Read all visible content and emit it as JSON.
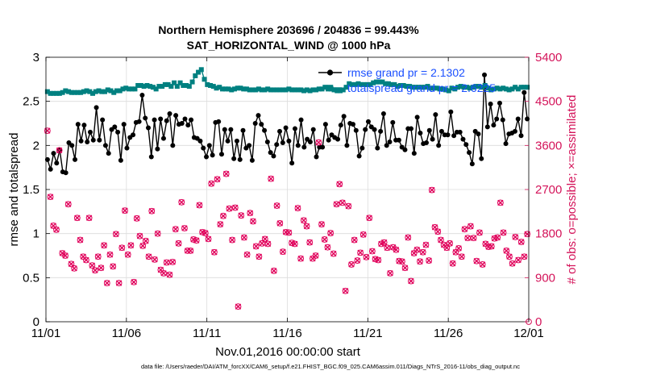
{
  "chart_data": {
    "type": "line",
    "title": "Northern Hemisphere 203696 / 204836 = 99.443%",
    "subtitle": "SAT_HORIZONTAL_WIND @ 1000 hPa",
    "xlabel": "Nov.01,2016 00:00:00 start",
    "ylabel_left": "rmse and totalspread",
    "ylabel_right": "# of obs: o=possible; ×=assimilated",
    "xlim": [
      0,
      30
    ],
    "ylim_left": [
      0,
      3
    ],
    "ylim_right": [
      0,
      5400
    ],
    "x_ticks": [
      {
        "value": 0,
        "label": "11/01"
      },
      {
        "value": 5,
        "label": "11/06"
      },
      {
        "value": 10,
        "label": "11/11"
      },
      {
        "value": 15,
        "label": "11/16"
      },
      {
        "value": 20,
        "label": "11/21"
      },
      {
        "value": 25,
        "label": "11/26"
      },
      {
        "value": 30,
        "label": "12/01"
      }
    ],
    "y_ticks_left": [
      {
        "value": 0,
        "label": "0"
      },
      {
        "value": 0.5,
        "label": "0.5"
      },
      {
        "value": 1,
        "label": "1"
      },
      {
        "value": 1.5,
        "label": "1.5"
      },
      {
        "value": 2,
        "label": "2"
      },
      {
        "value": 2.5,
        "label": "2.5"
      },
      {
        "value": 3,
        "label": "3"
      }
    ],
    "y_ticks_right": [
      {
        "value": 0,
        "label": "0"
      },
      {
        "value": 900,
        "label": "900"
      },
      {
        "value": 1800,
        "label": "1800"
      },
      {
        "value": 2700,
        "label": "2700"
      },
      {
        "value": 3600,
        "label": "3600"
      },
      {
        "value": 4500,
        "label": "4500"
      },
      {
        "value": 5400,
        "label": "5400"
      }
    ],
    "grid": true,
    "legend_position": "top-right",
    "series": [
      {
        "name": "rmse grand pr = 2.1302",
        "axis": "left",
        "color": "#000000",
        "values": [
          1.84,
          1.73,
          1.91,
          1.8,
          1.95,
          1.7,
          1.69,
          2.03,
          2.0,
          1.84,
          2.24,
          2.05,
          2.23,
          2.04,
          2.15,
          2.06,
          2.43,
          2.06,
          2.29,
          2.0,
          1.91,
          2.18,
          2.21,
          2.15,
          1.83,
          2.24,
          1.97,
          2.09,
          2.12,
          2.26,
          2.27,
          2.57,
          2.31,
          2.2,
          1.87,
          2.29,
          1.96,
          2.3,
          2.08,
          2.28,
          2.36,
          2.0,
          2.34,
          2.24,
          2.25,
          2.3,
          2.23,
          2.29,
          2.09,
          2.08,
          2.05,
          1.97,
          1.87,
          2.0,
          1.89,
          2.26,
          2.27,
          1.9,
          2.18,
          2.05,
          2.18,
          1.85,
          2.05,
          1.84,
          2.17,
          1.97,
          2.0,
          1.83,
          2.25,
          2.34,
          2.24,
          2.17,
          2.04,
          1.92,
          1.88,
          2.01,
          2.16,
          2.03,
          2.2,
          2.05,
          1.8,
          2.19,
          2.0,
          2.29,
          1.98,
          2.07,
          2.04,
          2.18,
          1.87,
          1.98,
          1.98,
          2.24,
          2.06,
          2.12,
          2.09,
          2.07,
          2.23,
          2.33,
          2.0,
          2.25,
          2.24,
          2.17,
          1.88,
          1.97,
          2.18,
          2.27,
          2.21,
          2.18,
          1.97,
          2.16,
          2.36,
          2.0,
          2.04,
          2.26,
          2.06,
          2.06,
          1.98,
          1.95,
          2.19,
          2.19,
          1.91,
          2.32,
          2.14,
          2.02,
          2.03,
          2.17,
          2.07,
          2.35,
          2.0,
          2.16,
          2.12,
          2.12,
          2.38,
          2.11,
          2.15,
          2.15,
          2.07,
          2.01,
          1.92,
          1.79,
          2.16,
          2.13,
          1.85,
          2.8,
          2.21,
          2.47,
          2.23,
          2.3,
          2.48,
          2.29,
          2.02,
          2.13,
          2.14,
          2.16,
          2.3,
          2.11,
          2.6,
          2.3
        ]
      },
      {
        "name": "totalspread grand pr = 2.6225",
        "axis": "left",
        "color": "#008080",
        "values": [
          2.61,
          2.59,
          2.59,
          2.59,
          2.59,
          2.6,
          2.62,
          2.61,
          2.6,
          2.6,
          2.6,
          2.6,
          2.61,
          2.62,
          2.61,
          2.59,
          2.61,
          2.62,
          2.61,
          2.61,
          2.63,
          2.62,
          2.6,
          2.62,
          2.62,
          2.64,
          2.65,
          2.64,
          2.64,
          2.64,
          2.68,
          2.68,
          2.67,
          2.68,
          2.67,
          2.66,
          2.64,
          2.67,
          2.67,
          2.69,
          2.69,
          2.67,
          2.71,
          2.67,
          2.71,
          2.68,
          2.68,
          2.67,
          2.72,
          2.79,
          2.83,
          2.86,
          2.75,
          2.69,
          2.68,
          2.67,
          2.65,
          2.66,
          2.64,
          2.64,
          2.64,
          2.63,
          2.64,
          2.65,
          2.65,
          2.64,
          2.64,
          2.63,
          2.63,
          2.63,
          2.64,
          2.63,
          2.63,
          2.64,
          2.63,
          2.63,
          2.63,
          2.63,
          2.63,
          2.63,
          2.64,
          2.63,
          2.63,
          2.63,
          2.63,
          2.62,
          2.63,
          2.62,
          2.63,
          2.63,
          2.64,
          2.64,
          2.66,
          2.64,
          2.64,
          2.63,
          2.62,
          2.62,
          2.63,
          2.66,
          2.7,
          2.69,
          2.69,
          2.7,
          2.69,
          2.69,
          2.69,
          2.69,
          2.71,
          2.72,
          2.72,
          2.72,
          2.7,
          2.7,
          2.69,
          2.69,
          2.67,
          2.68,
          2.68,
          2.67,
          2.67,
          2.66,
          2.66,
          2.66,
          2.66,
          2.66,
          2.67,
          2.65,
          2.65,
          2.65,
          2.64,
          2.64,
          2.63,
          2.62,
          2.65,
          2.64,
          2.66,
          2.67,
          2.66,
          2.66,
          2.65,
          2.66,
          2.67,
          2.67,
          2.66,
          2.68,
          2.65,
          2.63,
          2.64,
          2.65,
          2.64,
          2.65,
          2.64,
          2.63,
          2.64,
          2.66,
          2.64,
          2.66,
          2.66,
          2.66
        ]
      },
      {
        "name": "possible",
        "axis": "right",
        "marker": "o",
        "color": "#e0005a",
        "values": [
          3900,
          2550,
          1960,
          1880,
          3500,
          1400,
          1350,
          2400,
          1180,
          1090,
          2120,
          1670,
          1330,
          1260,
          2120,
          1150,
          1050,
          1330,
          1100,
          1560,
          790,
          1370,
          1130,
          1790,
          790,
          1510,
          2270,
          1370,
          1560,
          810,
          2110,
          1750,
          1550,
          1650,
          1330,
          2260,
          1270,
          1800,
          1060,
          990,
          1210,
          960,
          1220,
          1890,
          1600,
          2440,
          1910,
          1450,
          1450,
          1680,
          1660,
          2380,
          1830,
          1810,
          1690,
          2820,
          1420,
          2910,
          1990,
          2160,
          3020,
          2310,
          1670,
          2330,
          310,
          2170,
          1720,
          1370,
          2220,
          2050,
          1540,
          1330,
          1600,
          1690,
          1590,
          2920,
          1040,
          2370,
          2010,
          1430,
          1830,
          1820,
          1610,
          1590,
          2320,
          1290,
          2070,
          1950,
          1620,
          1290,
          1350,
          3660,
          1990,
          1680,
          1520,
          1810,
          1390,
          2400,
          2810,
          2430,
          630,
          2360,
          1170,
          1670,
          1250,
          1410,
          1780,
          1320,
          2120,
          1440,
          1280,
          1260,
          1590,
          1620,
          1510,
          990,
          1520,
          1470,
          1240,
          1230,
          1100,
          1720,
          830,
          1400,
          1470,
          1230,
          1420,
          1570,
          1250,
          2690,
          1930,
          1840,
          1670,
          1570,
          1510,
          1600,
          1190,
          1420,
          1500,
          1330,
          1890,
          1710,
          1950,
          1710,
          1240,
          1820,
          1170,
          1590,
          1530,
          1540,
          1700,
          1720,
          2430,
          1820,
          1450,
          1330,
          1190,
          1730,
          1260,
          1630,
          1330,
          1790
        ]
      },
      {
        "name": "assimilated",
        "axis": "right",
        "marker": "x",
        "color": "#e0005a",
        "values": [
          3900,
          2550,
          1960,
          1880,
          3500,
          1400,
          1350,
          2400,
          1180,
          1090,
          2120,
          1670,
          1330,
          1260,
          2120,
          1150,
          1050,
          1330,
          1100,
          1560,
          790,
          1370,
          1130,
          1790,
          790,
          1510,
          2270,
          1370,
          1560,
          810,
          2110,
          1750,
          1550,
          1650,
          1330,
          2260,
          1270,
          1800,
          1060,
          990,
          1210,
          960,
          1220,
          1890,
          1600,
          2440,
          1910,
          1450,
          1450,
          1680,
          1660,
          2380,
          1830,
          1810,
          1690,
          2820,
          1420,
          2910,
          1990,
          2160,
          3020,
          2310,
          1670,
          2330,
          310,
          2170,
          1720,
          1370,
          2220,
          2050,
          1540,
          1330,
          1600,
          1690,
          1590,
          2920,
          1040,
          2370,
          2010,
          1430,
          1830,
          1820,
          1610,
          1590,
          2320,
          1290,
          2070,
          1950,
          1620,
          1290,
          1350,
          3660,
          1990,
          1680,
          1520,
          1810,
          1390,
          2400,
          2810,
          2430,
          630,
          2360,
          1170,
          1670,
          1250,
          1410,
          1780,
          1320,
          2120,
          1440,
          1280,
          1260,
          1590,
          1620,
          1510,
          990,
          1520,
          1470,
          1240,
          1230,
          1100,
          1720,
          830,
          1400,
          1470,
          1230,
          1420,
          1570,
          1250,
          2690,
          1930,
          1840,
          1670,
          1570,
          1510,
          1600,
          1190,
          1420,
          1500,
          1330,
          1890,
          1710,
          1950,
          1710,
          1240,
          1820,
          1170,
          1590,
          1530,
          1540,
          1700,
          1720,
          2430,
          1820,
          1450,
          1330,
          1190,
          1730,
          1260,
          1630,
          1330,
          1790
        ]
      }
    ]
  },
  "footer": "data file: /Users/raeder/DAI/ATM_forcXX/CAM6_setup/f.e21.FHIST_BGC.f09_025.CAM6assim.011/Diags_NTrS_2016-11/obs_diag_output.nc",
  "colors": {
    "axis_right": "#d4145a",
    "legend_text": "#1a4fff"
  }
}
